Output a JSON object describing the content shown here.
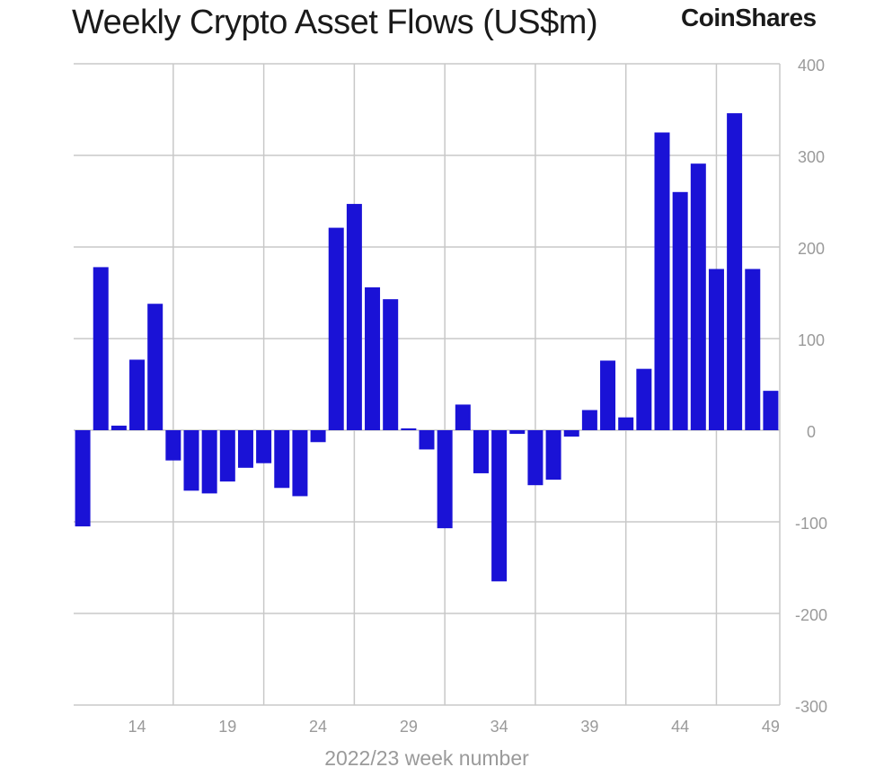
{
  "header": {
    "title": "Weekly Crypto Asset Flows (US$m)",
    "brand": "CoinShares"
  },
  "colors": {
    "bar": "#1a12d6",
    "grid": "#c8c8c8",
    "tick_text": "#9a9a9a",
    "title_text": "#1a1a1a"
  },
  "chart_data": {
    "type": "bar",
    "title": "Weekly Crypto Asset Flows (US$m)",
    "xlabel": "2022/23 week number",
    "ylabel": "",
    "ylim": [
      -300,
      400
    ],
    "yticks": [
      400,
      300,
      200,
      100,
      0,
      -100,
      -200,
      -300
    ],
    "y_axis_position": "right",
    "grid": true,
    "x_ticks": [
      "14",
      "19",
      "24",
      "29",
      "34",
      "39",
      "44",
      "49"
    ],
    "series": [
      {
        "values": [
          -105,
          178,
          5,
          77,
          138,
          -33,
          -66,
          -69,
          -56,
          -41,
          -36,
          -63,
          -72,
          -13,
          221,
          247,
          156,
          143,
          2,
          -21,
          -107,
          28,
          -47,
          -165,
          -4,
          -60,
          -54,
          -7,
          22,
          76,
          14,
          67,
          325,
          260,
          291,
          176,
          346,
          176,
          43
        ]
      }
    ]
  }
}
